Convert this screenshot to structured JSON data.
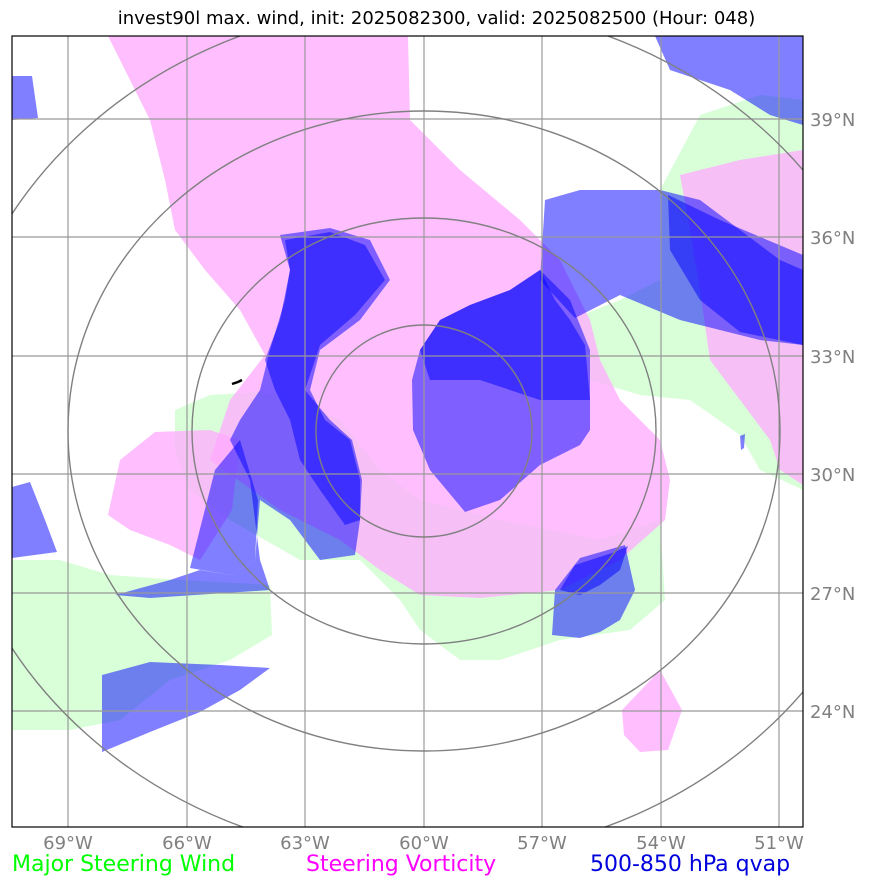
{
  "title": "invest90l max. wind, init: 2025082300, valid: 2025082500 (Hour: 048)",
  "lon_labels": [
    "69°W",
    "66°W",
    "63°W",
    "60°W",
    "57°W",
    "54°W",
    "51°W"
  ],
  "lat_labels": [
    "39°N",
    "36°N",
    "33°N",
    "30°N",
    "27°N",
    "24°N"
  ],
  "legend": {
    "green": "Major Steering Wind",
    "magenta": "Steering Vorticity",
    "blue": "500-850 hPa qvap"
  },
  "colors": {
    "wind": "#ccffcc",
    "vorticity": "#ffaaff",
    "qvap": "#0000ff",
    "grid": "#999999",
    "range_rings": "#808080",
    "axis_labels": "#808080"
  },
  "map_extent": {
    "lon_min": -70.5,
    "lon_max": -50.5,
    "lat_min": 21,
    "lat_max": 41
  },
  "range_rings": {
    "center_lon": -60,
    "center_lat": 31,
    "layer_count": 4
  },
  "layers": [
    "Major Steering Wind",
    "Steering Vorticity",
    "500-850 hPa qvap"
  ]
}
